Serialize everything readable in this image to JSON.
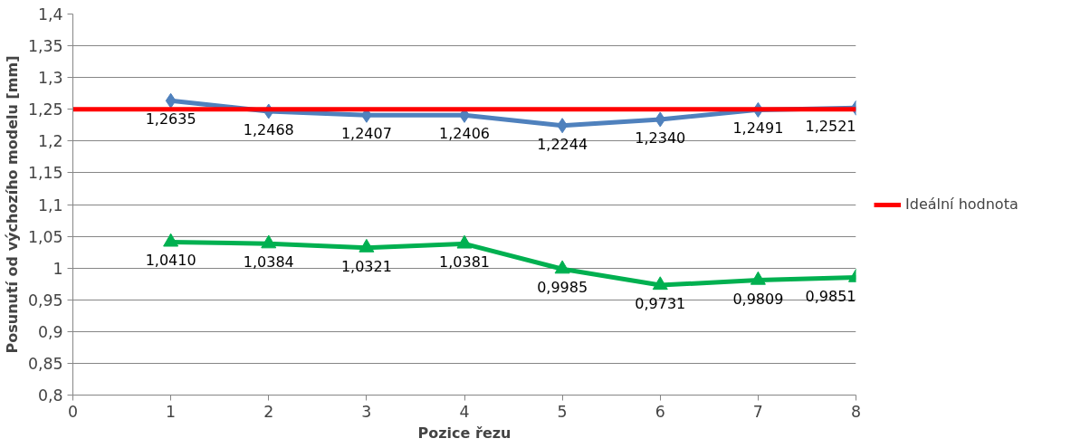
{
  "chart_data": {
    "type": "line",
    "xlabel": "Pozice řezu",
    "ylabel": "Posunutí od výchozího modelu [mm]",
    "xlim": [
      0,
      8
    ],
    "xticks": [
      0,
      1,
      2,
      3,
      4,
      5,
      6,
      7,
      8
    ],
    "ylim": [
      0.8,
      1.4
    ],
    "yticks": [
      {
        "value": 0.8,
        "label": "0,8"
      },
      {
        "value": 0.85,
        "label": "0,85"
      },
      {
        "value": 0.9,
        "label": "0,9"
      },
      {
        "value": 0.95,
        "label": "0,95"
      },
      {
        "value": 1.0,
        "label": "1"
      },
      {
        "value": 1.05,
        "label": "1,05"
      },
      {
        "value": 1.1,
        "label": "1,1"
      },
      {
        "value": 1.15,
        "label": "1,15"
      },
      {
        "value": 1.2,
        "label": "1,2"
      },
      {
        "value": 1.25,
        "label": "1,25"
      },
      {
        "value": 1.3,
        "label": "1,3"
      },
      {
        "value": 1.35,
        "label": "1,35"
      },
      {
        "value": 1.4,
        "label": "1,4"
      }
    ],
    "grid": "y",
    "legend": "right",
    "series": [
      {
        "color": "#4f81bd",
        "marker": "diamond",
        "x": [
          1,
          2,
          3,
          4,
          5,
          6,
          7,
          8
        ],
        "values": [
          1.2635,
          1.2468,
          1.2407,
          1.2406,
          1.2244,
          1.234,
          1.2491,
          1.2521
        ],
        "value_labels": [
          "1,2635",
          "1,2468",
          "1,2407",
          "1,2406",
          "1,2244",
          "1,2340",
          "1,2491",
          "1,2521"
        ]
      },
      {
        "color": "#00b050",
        "marker": "triangle",
        "x": [
          1,
          2,
          3,
          4,
          5,
          6,
          7,
          8
        ],
        "values": [
          1.041,
          1.0384,
          1.0321,
          1.0381,
          0.9985,
          0.9731,
          0.9809,
          0.9851
        ],
        "value_labels": [
          "1,0410",
          "1,0384",
          "1,0321",
          "1,0381",
          "0,9985",
          "0,9731",
          "0,9809",
          "0,9851"
        ]
      },
      {
        "name": "Ideální hodnota",
        "color": "#ff0000",
        "marker": "none",
        "x": [
          0,
          8
        ],
        "values": [
          1.25,
          1.25
        ]
      }
    ]
  }
}
